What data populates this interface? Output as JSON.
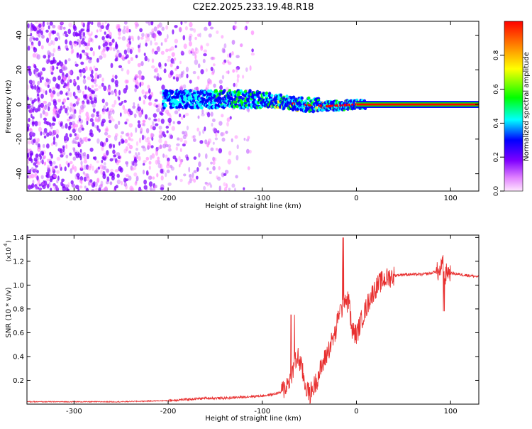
{
  "title": "C2E2.2025.233.19.48.R18",
  "chart_data": [
    {
      "type": "heatmap",
      "xlabel": "Height of straight line (km)",
      "ylabel": "Frequency (Hz)",
      "xlim": [
        -350,
        130
      ],
      "ylim": [
        -50,
        48
      ],
      "xticks": [
        -300,
        -200,
        -100,
        0,
        100
      ],
      "yticks": [
        -40,
        -20,
        0,
        20,
        40
      ],
      "colorbar": {
        "label": "Normalized spectral amplitude",
        "range": [
          0,
          1
        ],
        "ticks": [
          "0.0",
          "0.2",
          "0.4",
          "0.6",
          "0.8"
        ],
        "tick_values": [
          0,
          0.2,
          0.4,
          0.6,
          0.8
        ]
      },
      "colors": {
        "low": "#ff80ff",
        "violet": "#7f00ff",
        "blue": "#0000ff",
        "cyan": "#00ffff",
        "green": "#00ff00",
        "yellow": "#ffff00",
        "red": "#ff0000"
      },
      "ridge": [
        {
          "x": -205,
          "y": 3
        },
        {
          "x": -150,
          "y": 3
        },
        {
          "x": -100,
          "y": 3
        },
        {
          "x": -60,
          "y": 0
        },
        {
          "x": -30,
          "y": -1
        },
        {
          "x": 0,
          "y": 0
        },
        {
          "x": 130,
          "y": 0
        }
      ],
      "noise_region": {
        "x_from": -350,
        "x_to": -110
      }
    },
    {
      "type": "line",
      "xlabel": "Height of straight line (km)",
      "ylabel": "SNR (10 * v/v)",
      "y_multiplier": "(x10",
      "y_multiplier_exp": "4",
      "y_multiplier_close": ")",
      "xlim": [
        -350,
        130
      ],
      "ylim": [
        0,
        1.42
      ],
      "xticks": [
        -300,
        -200,
        -100,
        0,
        100
      ],
      "yticks": [
        0.2,
        0.4,
        0.6,
        0.8,
        1.0,
        1.2,
        1.4
      ],
      "ytick_labels": [
        "0.2",
        "0.4",
        "0.6",
        "0.8",
        "1.0",
        "1.2",
        "1.4"
      ],
      "series": [
        {
          "color": "#e83030",
          "x": [
            -350,
            -300,
            -250,
            -200,
            -180,
            -160,
            -140,
            -120,
            -100,
            -90,
            -80,
            -75,
            -70,
            -65,
            -62,
            -58,
            -55,
            -52,
            -50,
            -45,
            -40,
            -35,
            -30,
            -25,
            -22,
            -20,
            -18,
            -16,
            -14,
            -12,
            -10,
            -8,
            -5,
            -2,
            0,
            5,
            10,
            15,
            20,
            25,
            30,
            40,
            50,
            60,
            70,
            80,
            85,
            88,
            90,
            92,
            94,
            96,
            100,
            110,
            120,
            130
          ],
          "y": [
            0.02,
            0.02,
            0.02,
            0.03,
            0.04,
            0.05,
            0.05,
            0.06,
            0.07,
            0.08,
            0.1,
            0.15,
            0.22,
            0.35,
            0.4,
            0.3,
            0.18,
            0.12,
            0.08,
            0.15,
            0.25,
            0.35,
            0.45,
            0.55,
            0.6,
            0.7,
            0.8,
            0.78,
            0.85,
            0.9,
            0.85,
            0.88,
            0.62,
            0.6,
            0.58,
            0.7,
            0.8,
            0.9,
            0.97,
            1.02,
            1.05,
            1.08,
            1.09,
            1.09,
            1.09,
            1.1,
            1.12,
            1.1,
            1.15,
            1.18,
            1.05,
            1.12,
            1.1,
            1.09,
            1.08,
            1.07
          ]
        }
      ]
    }
  ]
}
